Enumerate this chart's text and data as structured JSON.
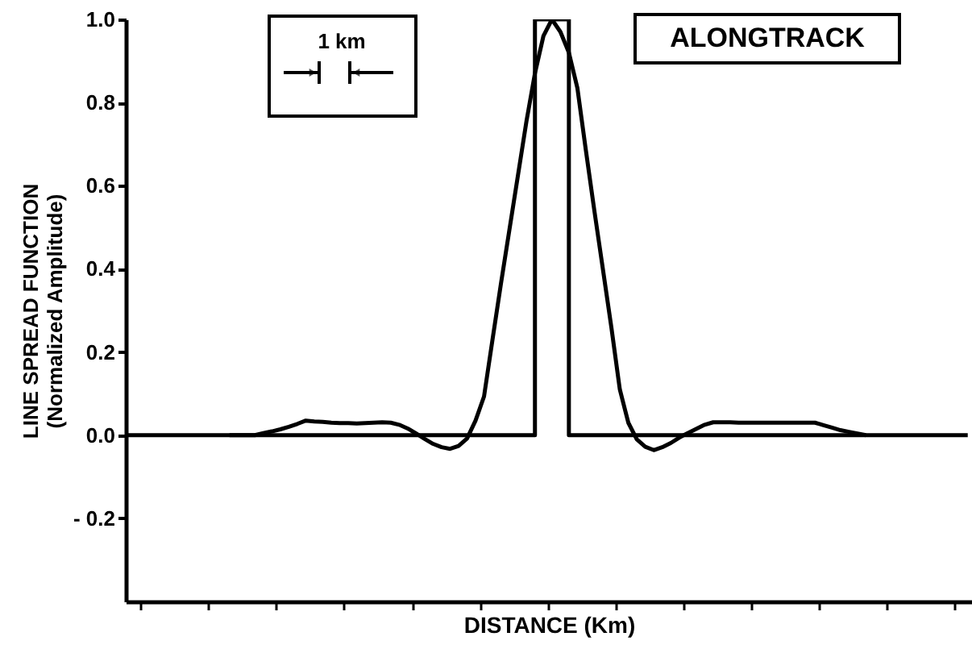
{
  "chart_data": {
    "type": "line",
    "xlabel": "DISTANCE (Km)",
    "ylabel": "LINE SPREAD FUNCTION\n(Normalized Amplitude)",
    "annotations": [
      "1 km",
      "ALONGTRACK"
    ],
    "categories": [
      null,
      null,
      null,
      null,
      null,
      null,
      null,
      null,
      null,
      null,
      null,
      null,
      null,
      null,
      null,
      null,
      null,
      null,
      null,
      null,
      null,
      null,
      null,
      null,
      null,
      null,
      null,
      null,
      null,
      null,
      null,
      null,
      null,
      null,
      null,
      null,
      null,
      null,
      null,
      null,
      null,
      null,
      null,
      null,
      null,
      null,
      null,
      null,
      null,
      null,
      null,
      null,
      null,
      null,
      null,
      null,
      null,
      null,
      null,
      null,
      null,
      null,
      null,
      null,
      null,
      null,
      null,
      null,
      null,
      null,
      null,
      null,
      null,
      null,
      null,
      null,
      null,
      null,
      null,
      null,
      null,
      null,
      null,
      null,
      null,
      null,
      null,
      null,
      null,
      null,
      null,
      null,
      null,
      null,
      null,
      null,
      null,
      null,
      null,
      null
    ],
    "series": [
      {
        "type": "step",
        "color": "#000000",
        "values": [
          0,
          0,
          0,
          0,
          0,
          0,
          0,
          0,
          0,
          0,
          0,
          0,
          0,
          0,
          0,
          0,
          0,
          0,
          0,
          0,
          0,
          0,
          0,
          0,
          0,
          0,
          0,
          0,
          0,
          0,
          0,
          0,
          0,
          0,
          0,
          0,
          0,
          0,
          0,
          0,
          0,
          0,
          0,
          0,
          0,
          0,
          0,
          0,
          1.0,
          1.0,
          1.0,
          1.0,
          0,
          0,
          0,
          0,
          0,
          0,
          0,
          0,
          0,
          0,
          0,
          0,
          0,
          0,
          0,
          0,
          0,
          0,
          0,
          0,
          0,
          0,
          0,
          0,
          0,
          0,
          0,
          0,
          0,
          0,
          0,
          0,
          0,
          0,
          0,
          0,
          0,
          0,
          0,
          0,
          0,
          0,
          0,
          0,
          0,
          0,
          0,
          0
        ]
      },
      {
        "type": "line",
        "color": "#000000",
        "values": [
          null,
          null,
          null,
          null,
          null,
          null,
          null,
          null,
          null,
          null,
          null,
          null,
          0,
          0,
          0,
          0,
          0.005,
          0.009,
          0.014,
          0.02,
          0.027,
          0.035,
          0.033,
          0.032,
          0.03,
          0.029,
          0.029,
          0.028,
          0.029,
          0.03,
          0.031,
          0.03,
          0.025,
          0.016,
          0.004,
          -0.009,
          -0.021,
          -0.029,
          -0.033,
          -0.026,
          -0.008,
          0.035,
          0.093,
          0.23,
          0.365,
          0.495,
          0.625,
          0.755,
          0.87,
          0.96,
          1.0,
          0.97,
          0.92,
          0.835,
          0.685,
          0.54,
          0.4,
          0.26,
          0.11,
          0.03,
          -0.01,
          -0.028,
          -0.036,
          -0.029,
          -0.019,
          -0.006,
          0.005,
          0.015,
          0.025,
          0.031,
          0.031,
          0.031,
          0.03,
          0.03,
          0.03,
          0.03,
          0.03,
          0.03,
          0.03,
          0.03,
          0.03,
          0.03,
          0.024,
          0.018,
          0.012,
          0.008,
          0.004,
          0,
          null,
          null,
          null,
          null,
          null,
          null,
          null,
          null,
          null,
          null,
          null,
          null
        ]
      }
    ],
    "ylim": [
      -0.4,
      1.0
    ],
    "yticks": [
      {
        "value": -0.2,
        "label": "- 0.2"
      },
      {
        "value": 0,
        "label": "0.0"
      },
      {
        "value": 0.2,
        "label": "0.2"
      },
      {
        "value": 0.4,
        "label": "0.4"
      },
      {
        "value": 0.6,
        "label": "0.6"
      },
      {
        "value": 0.8,
        "label": "0.8"
      },
      {
        "value": 1.0,
        "label": "1.0"
      }
    ],
    "tick_labels": "y",
    "grid": false,
    "marker": "none",
    "line_style": "solid"
  }
}
